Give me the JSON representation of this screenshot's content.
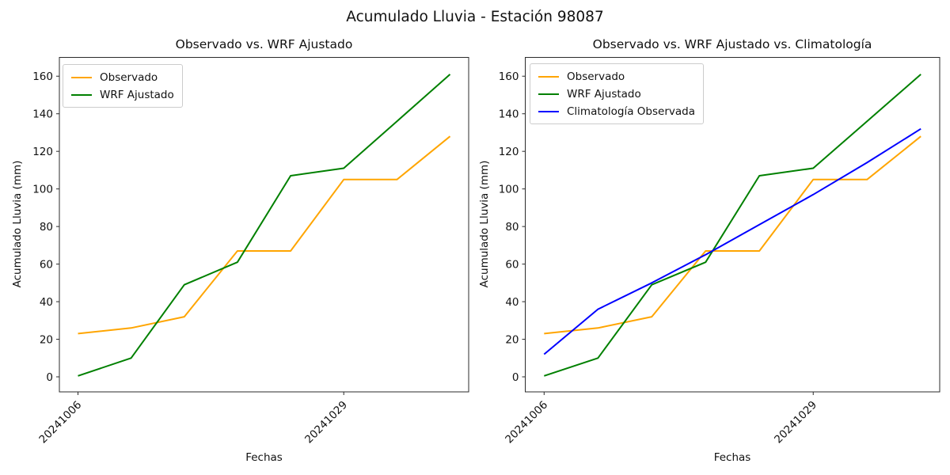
{
  "figure_title": "Acumulado Lluvia - Estación 98087",
  "chart_data": [
    {
      "type": "line",
      "title": "Observado vs. WRF Ajustado",
      "xlabel": "Fechas",
      "ylabel": "Acumulado Lluvia (mm)",
      "x": [
        0,
        1,
        2,
        3,
        4,
        5,
        6,
        7
      ],
      "x_tick_positions": [
        0,
        5
      ],
      "x_tick_labels": [
        "20241006",
        "20241029"
      ],
      "y_ticks": [
        0,
        20,
        40,
        60,
        80,
        100,
        120,
        140,
        160
      ],
      "xlim": [
        -0.35,
        7.35
      ],
      "ylim": [
        -8,
        170
      ],
      "grid": false,
      "legend_position": "upper left",
      "series": [
        {
          "name": "Observado",
          "color": "#FFA500",
          "values": [
            23,
            26,
            32,
            67,
            67,
            105,
            105,
            128
          ]
        },
        {
          "name": "WRF Ajustado",
          "color": "#008000",
          "values": [
            0.5,
            10,
            49,
            61,
            107,
            111,
            136,
            161
          ]
        }
      ]
    },
    {
      "type": "line",
      "title": "Observado vs. WRF Ajustado vs. Climatología",
      "xlabel": "Fechas",
      "ylabel": "Acumulado Lluvia (mm)",
      "x": [
        0,
        1,
        2,
        3,
        4,
        5,
        6,
        7
      ],
      "x_tick_positions": [
        0,
        5
      ],
      "x_tick_labels": [
        "20241006",
        "20241029"
      ],
      "y_ticks": [
        0,
        20,
        40,
        60,
        80,
        100,
        120,
        140,
        160
      ],
      "xlim": [
        -0.35,
        7.35
      ],
      "ylim": [
        -8,
        170
      ],
      "grid": false,
      "legend_position": "upper left",
      "series": [
        {
          "name": "Observado",
          "color": "#FFA500",
          "values": [
            23,
            26,
            32,
            67,
            67,
            105,
            105,
            128
          ]
        },
        {
          "name": "WRF Ajustado",
          "color": "#008000",
          "values": [
            0.5,
            10,
            49,
            61,
            107,
            111,
            136,
            161
          ]
        },
        {
          "name": "Climatología Observada",
          "color": "#0000FF",
          "values": [
            12,
            36,
            50,
            65,
            81,
            97,
            114,
            132
          ]
        }
      ]
    }
  ]
}
